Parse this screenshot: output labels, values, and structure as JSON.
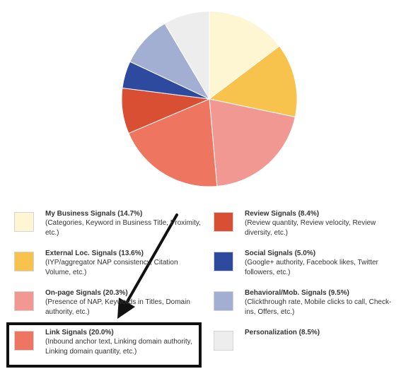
{
  "chart_data": {
    "type": "pie",
    "slices": [
      {
        "name": "My Business Signals",
        "value": 14.7,
        "color": "#FEF5D2",
        "label": "My Business Signals (14.7%)",
        "desc": "(Categories, Keyword in Business Title, Proximity, etc.)"
      },
      {
        "name": "External Loc. Signals",
        "value": 13.6,
        "color": "#F7C34D",
        "label": "External Loc. Signals (13.6%)",
        "desc": "(IYP/aggregator NAP consistency, Citation Volume, etc.)"
      },
      {
        "name": "On-page Signals",
        "value": 20.3,
        "color": "#F29893",
        "label": "On-page Signals (20.3%)",
        "desc": "(Presence of NAP, Keywords in Titles, Domain authority, etc.)"
      },
      {
        "name": "Link Signals",
        "value": 20.0,
        "color": "#EE7560",
        "label": "Link Signals (20.0%)",
        "desc": "(Inbound anchor text, Linking domain authority, Linking domain quantity, etc.)"
      },
      {
        "name": "Review Signals",
        "value": 8.4,
        "color": "#D94F33",
        "label": "Review Signals (8.4%)",
        "desc": "(Review quantity, Review velocity, Review diversity, etc.)"
      },
      {
        "name": "Social Signals",
        "value": 5.0,
        "color": "#2D4A9E",
        "label": "Social Signals (5.0%)",
        "desc": "(Google+ authority, Facebook likes, Twitter followers, etc.)"
      },
      {
        "name": "Behavioral/Mob. Signals",
        "value": 9.5,
        "color": "#A2AFD2",
        "label": "Behavioral/Mob. Signals (9.5%)",
        "desc": "(Clickthrough rate, Mobile clicks to call, Check-ins, Offers, etc.)"
      },
      {
        "name": "Personalization",
        "value": 8.5,
        "color": "#EDEDED",
        "label": "Personalization (8.5%)",
        "desc": ""
      }
    ],
    "legend_position": "bottom",
    "highlighted": "Link Signals"
  }
}
